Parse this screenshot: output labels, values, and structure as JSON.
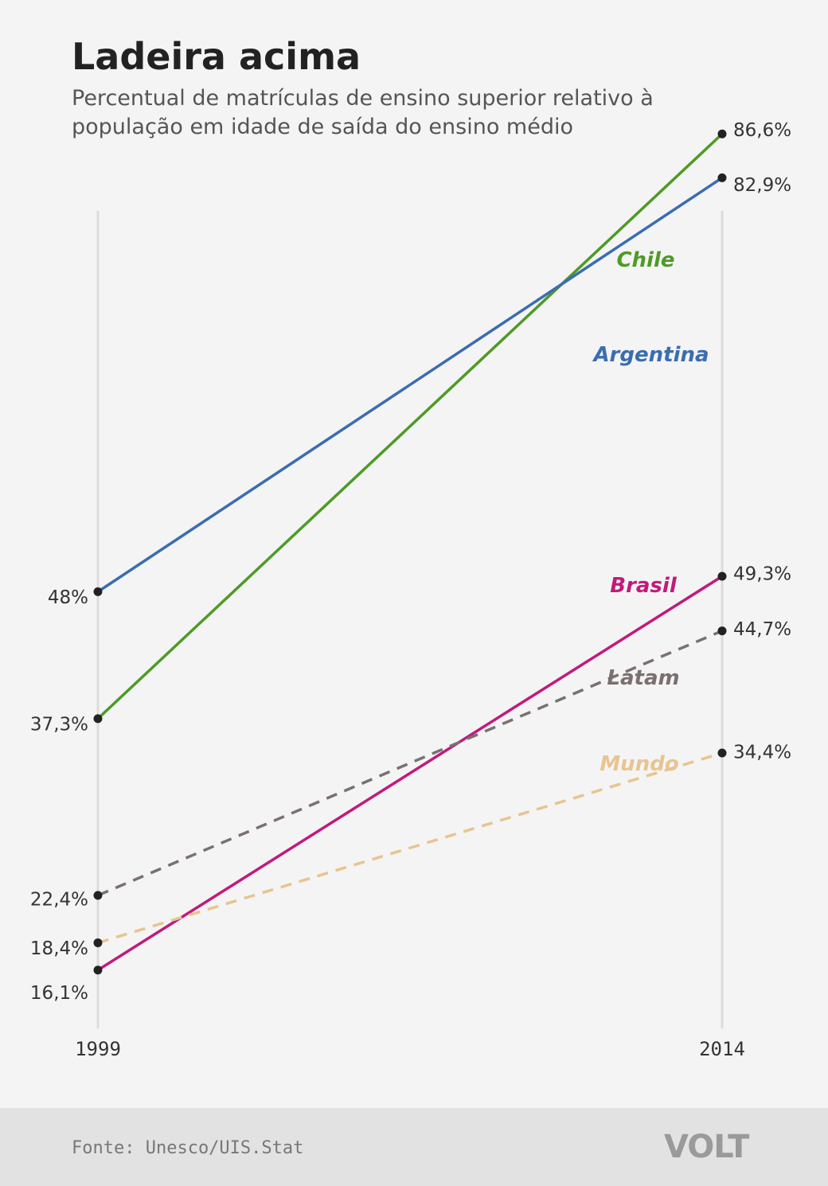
{
  "header": {
    "title": "Ladeira acima",
    "subtitle": "Percentual de matrículas de ensino superior relativo à população em idade de saída do ensino médio"
  },
  "footer": {
    "source": "Fonte: Unesco/UIS.Stat",
    "logo": "VOLT"
  },
  "chart_data": {
    "type": "line",
    "x": [
      "1999",
      "2014"
    ],
    "grid": "vertical lines at each year",
    "series": [
      {
        "name": "Chile",
        "values": [
          37.3,
          86.6
        ],
        "labels": [
          "37,3%",
          "86,6%"
        ],
        "color": "#4e9a26",
        "dashed": false
      },
      {
        "name": "Argentina",
        "values": [
          48,
          82.9
        ],
        "labels": [
          "48%",
          "82,9%"
        ],
        "color": "#3a6db0",
        "dashed": false
      },
      {
        "name": "Brasil",
        "values": [
          16.1,
          49.3
        ],
        "labels": [
          "16,1%",
          "49,3%"
        ],
        "color": "#c11a7c",
        "dashed": false
      },
      {
        "name": "Latam",
        "values": [
          22.4,
          44.7
        ],
        "labels": [
          "22,4%",
          "44,7%"
        ],
        "color": "#7a7070",
        "dashed": true
      },
      {
        "name": "Mundo",
        "values": [
          18.4,
          34.4
        ],
        "labels": [
          "18,4%",
          "34,4%"
        ],
        "color": "#e8c490",
        "dashed": true
      }
    ]
  }
}
